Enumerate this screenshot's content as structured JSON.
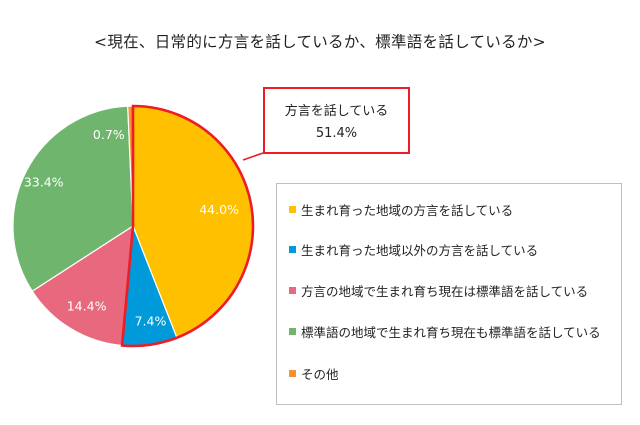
{
  "chart_data": {
    "type": "pie",
    "title": "<現在、日常的に方言を話しているか、標準語を話しているか>",
    "slices": [
      {
        "label": "生まれ育った地域の方言を話している",
        "value": 44.0,
        "display": "44.0%",
        "color": "#ffc000"
      },
      {
        "label": "生まれ育った地域以外の方言を話している",
        "value": 7.4,
        "display": "7.4%",
        "color": "#0099d9"
      },
      {
        "label": "方言の地域で生まれ育ち現在は標準語を話している",
        "value": 14.4,
        "display": "14.4%",
        "color": "#e8697d"
      },
      {
        "label": "標準語の地域で生まれ育ち現在も標準語を話している",
        "value": 33.4,
        "display": "33.4%",
        "color": "#70b56e"
      },
      {
        "label": "その他",
        "value": 0.7,
        "display": "0.7%",
        "color": "#f59331"
      }
    ],
    "callout": {
      "label": "方言を話している",
      "value": "51.4%",
      "highlight_color": "#ee1c25"
    },
    "legend_position": "right"
  }
}
